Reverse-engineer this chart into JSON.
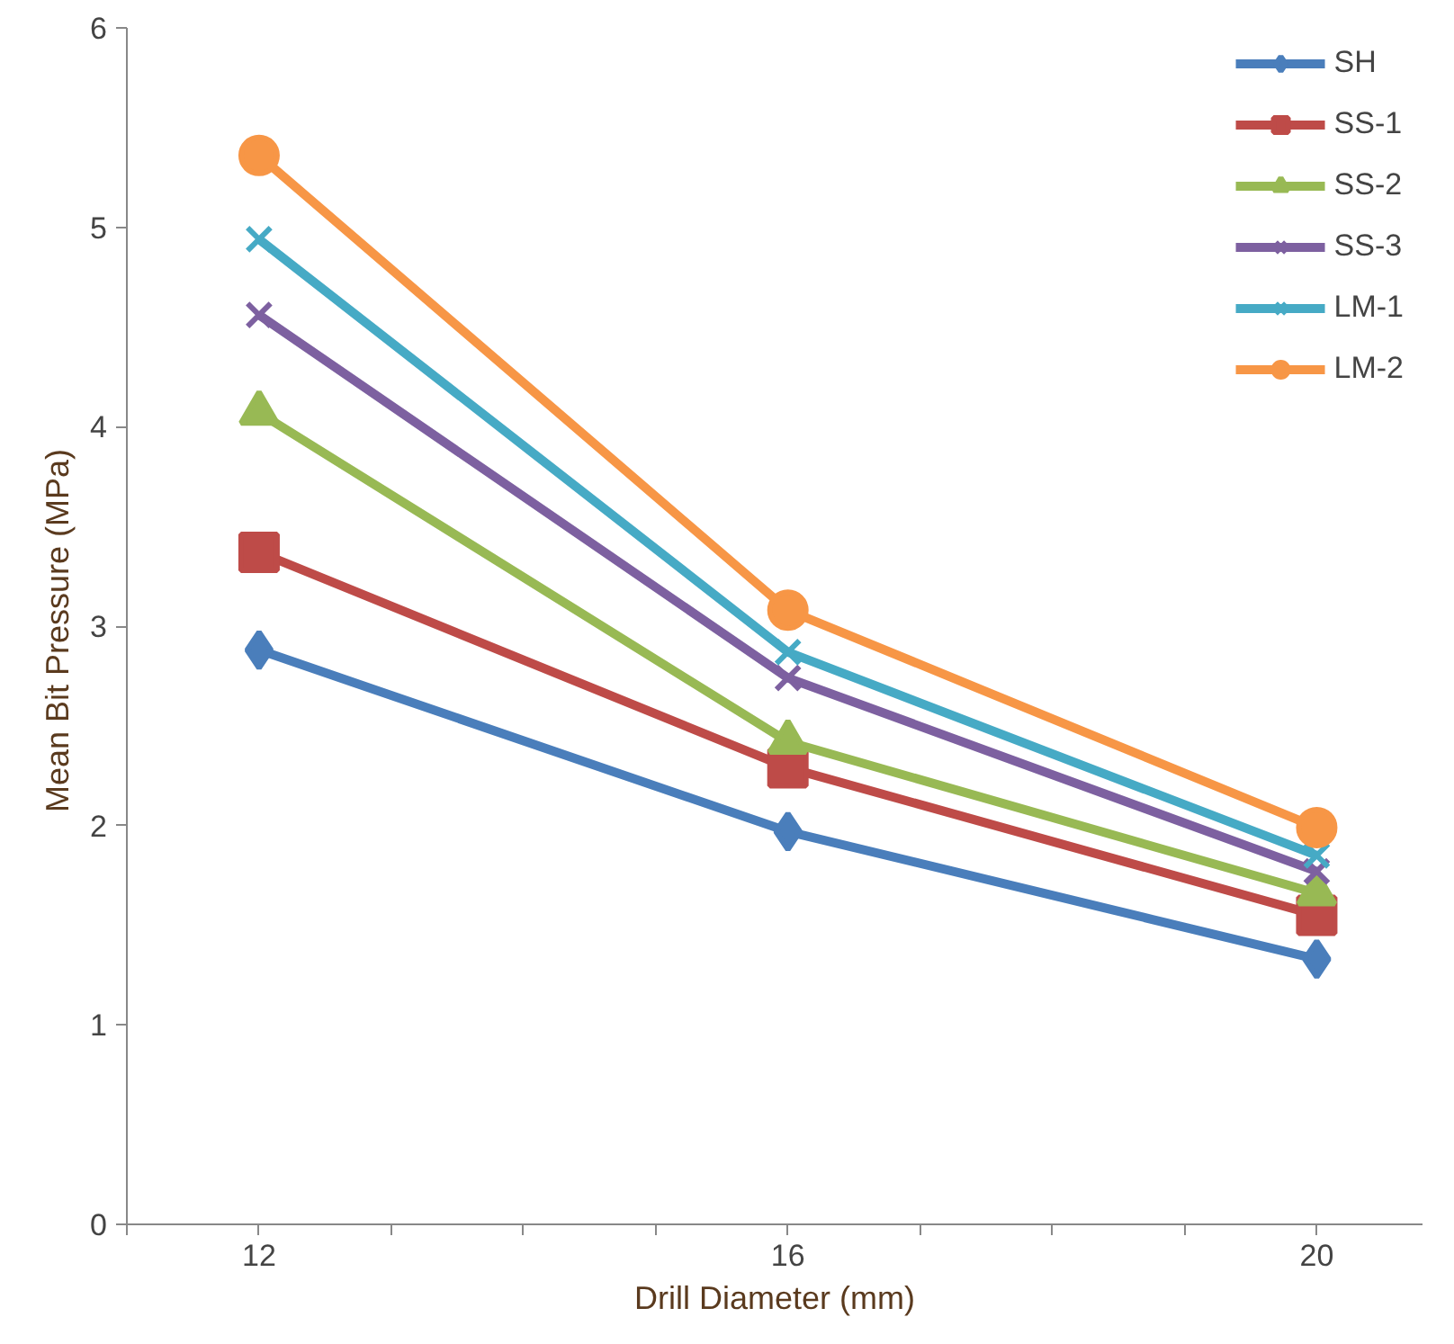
{
  "chart_data": {
    "type": "line",
    "xlabel": "Drill Diameter (mm)",
    "ylabel": "Mean  Bit Pressure (MPa)",
    "x": [
      12,
      16,
      20
    ],
    "xlim": [
      11,
      20.8
    ],
    "xticks": [
      {
        "value": 11,
        "label": null
      },
      12,
      {
        "value": 13,
        "label": null
      },
      {
        "value": 14,
        "label": null
      },
      {
        "value": 15,
        "label": null
      },
      16,
      {
        "value": 17,
        "label": null
      },
      {
        "value": 18,
        "label": null
      },
      {
        "value": 19,
        "label": null
      },
      20
    ],
    "ylim": [
      0,
      6
    ],
    "yticks": [
      0,
      1,
      2,
      3,
      4,
      5,
      6
    ],
    "grid": false,
    "legend": "top right",
    "series": [
      {
        "name": "SH",
        "color": "#4a7ebb",
        "marker": "diamond",
        "values": [
          2.88,
          1.97,
          1.33
        ]
      },
      {
        "name": "SS-1",
        "color": "#be4b48",
        "marker": "square",
        "values": [
          3.37,
          2.29,
          1.55
        ]
      },
      {
        "name": "SS-2",
        "color": "#98b954",
        "marker": "triangle",
        "values": [
          4.07,
          2.42,
          1.66
        ]
      },
      {
        "name": "SS-3",
        "color": "#7d60a0",
        "marker": "cross",
        "values": [
          4.56,
          2.74,
          1.77
        ]
      },
      {
        "name": "LM-1",
        "color": "#46aac5",
        "marker": "cross",
        "values": [
          4.94,
          2.87,
          1.85
        ]
      },
      {
        "name": "LM-2",
        "color": "#f79646",
        "marker": "circle",
        "values": [
          5.36,
          3.08,
          1.99
        ]
      }
    ]
  }
}
